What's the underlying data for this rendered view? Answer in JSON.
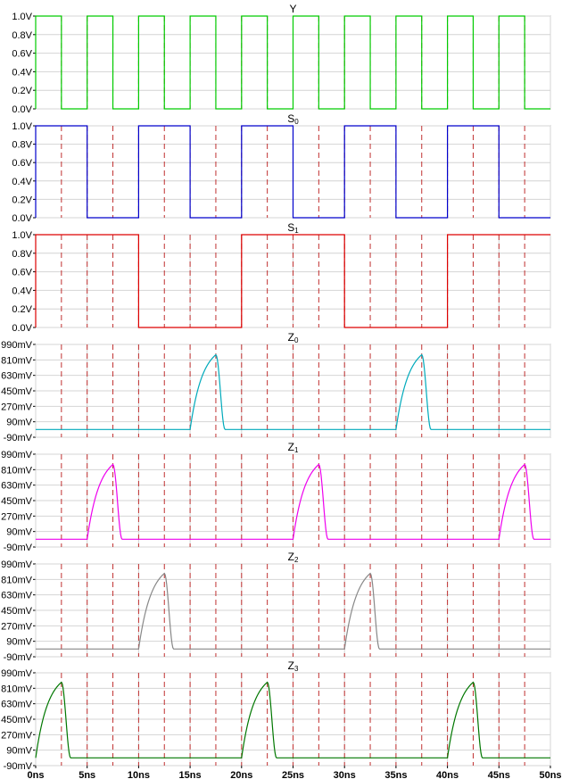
{
  "chart_data": {
    "type": "line",
    "x_unit": "ns",
    "xlim": [
      0,
      50
    ],
    "xticks": [
      "0ns",
      "5ns",
      "10ns",
      "15ns",
      "20ns",
      "25ns",
      "30ns",
      "35ns",
      "40ns",
      "45ns",
      "50ns"
    ],
    "marker_times": [
      2.5,
      5,
      7.5,
      10,
      12.5,
      15,
      17.5,
      20,
      22.5,
      25,
      27.5,
      30,
      32.5,
      35,
      37.5,
      40,
      42.5,
      45,
      47.5
    ],
    "grid": true,
    "panels": [
      {
        "title_main": "Y",
        "title_sub": "",
        "color": "#00cc00",
        "ylim": [
          0,
          1.0
        ],
        "yticks": [
          {
            "v": 1.0,
            "label": "1.0V"
          },
          {
            "v": 0.8,
            "label": "0.8V"
          },
          {
            "v": 0.6,
            "label": "0.6V"
          },
          {
            "v": 0.4,
            "label": "0.4V"
          },
          {
            "v": 0.2,
            "label": "0.2V"
          },
          {
            "v": 0.0,
            "label": "0.0V"
          }
        ],
        "kind": "digital",
        "points": [
          [
            0,
            0
          ],
          [
            0,
            1
          ],
          [
            2.5,
            1
          ],
          [
            2.5,
            0
          ],
          [
            5,
            0
          ],
          [
            5,
            1
          ],
          [
            7.5,
            1
          ],
          [
            7.5,
            0
          ],
          [
            10,
            0
          ],
          [
            10,
            1
          ],
          [
            12.5,
            1
          ],
          [
            12.5,
            0
          ],
          [
            15,
            0
          ],
          [
            15,
            1
          ],
          [
            17.5,
            1
          ],
          [
            17.5,
            0
          ],
          [
            20,
            0
          ],
          [
            20,
            1
          ],
          [
            22.5,
            1
          ],
          [
            22.5,
            0
          ],
          [
            25,
            0
          ],
          [
            25,
            1
          ],
          [
            27.5,
            1
          ],
          [
            27.5,
            0
          ],
          [
            30,
            0
          ],
          [
            30,
            1
          ],
          [
            32.5,
            1
          ],
          [
            32.5,
            0
          ],
          [
            35,
            0
          ],
          [
            35,
            1
          ],
          [
            37.5,
            1
          ],
          [
            37.5,
            0
          ],
          [
            40,
            0
          ],
          [
            40,
            1
          ],
          [
            42.5,
            1
          ],
          [
            42.5,
            0
          ],
          [
            45,
            0
          ],
          [
            45,
            1
          ],
          [
            47.5,
            1
          ],
          [
            47.5,
            0
          ],
          [
            50,
            0
          ]
        ]
      },
      {
        "title_main": "S",
        "title_sub": "0",
        "color": "#0000cc",
        "ylim": [
          0,
          1.0
        ],
        "yticks": [
          {
            "v": 1.0,
            "label": "1.0V"
          },
          {
            "v": 0.8,
            "label": "0.8V"
          },
          {
            "v": 0.6,
            "label": "0.6V"
          },
          {
            "v": 0.4,
            "label": "0.4V"
          },
          {
            "v": 0.2,
            "label": "0.2V"
          },
          {
            "v": 0.0,
            "label": "0.0V"
          }
        ],
        "kind": "digital",
        "points": [
          [
            0,
            0
          ],
          [
            0,
            1
          ],
          [
            5,
            1
          ],
          [
            5,
            0
          ],
          [
            10,
            0
          ],
          [
            10,
            1
          ],
          [
            15,
            1
          ],
          [
            15,
            0
          ],
          [
            20,
            0
          ],
          [
            20,
            1
          ],
          [
            25,
            1
          ],
          [
            25,
            0
          ],
          [
            30,
            0
          ],
          [
            30,
            1
          ],
          [
            35,
            1
          ],
          [
            35,
            0
          ],
          [
            40,
            0
          ],
          [
            40,
            1
          ],
          [
            45,
            1
          ],
          [
            45,
            0
          ],
          [
            50,
            0
          ]
        ]
      },
      {
        "title_main": "S",
        "title_sub": "1",
        "color": "#dd0000",
        "ylim": [
          0,
          1.0
        ],
        "yticks": [
          {
            "v": 1.0,
            "label": "1.0V"
          },
          {
            "v": 0.8,
            "label": "0.8V"
          },
          {
            "v": 0.6,
            "label": "0.6V"
          },
          {
            "v": 0.4,
            "label": "0.4V"
          },
          {
            "v": 0.2,
            "label": "0.2V"
          },
          {
            "v": 0.0,
            "label": "0.0V"
          }
        ],
        "kind": "digital",
        "points": [
          [
            0,
            0
          ],
          [
            0,
            1
          ],
          [
            10,
            1
          ],
          [
            10,
            0
          ],
          [
            20,
            0
          ],
          [
            20,
            1
          ],
          [
            30,
            1
          ],
          [
            30,
            0
          ],
          [
            40,
            0
          ],
          [
            40,
            1
          ],
          [
            50,
            1
          ]
        ]
      },
      {
        "title_main": "Z",
        "title_sub": "0",
        "color": "#00aabb",
        "ylim": [
          -90,
          990
        ],
        "yticks": [
          {
            "v": 990,
            "label": "990mV"
          },
          {
            "v": 810,
            "label": "810mV"
          },
          {
            "v": 630,
            "label": "630mV"
          },
          {
            "v": 450,
            "label": "450mV"
          },
          {
            "v": 270,
            "label": "270mV"
          },
          {
            "v": 90,
            "label": "90mV"
          },
          {
            "v": -90,
            "label": "-90mV"
          }
        ],
        "kind": "pulse",
        "baseline": 0,
        "peak": 870,
        "pulses": [
          [
            15,
            17.5
          ],
          [
            35,
            37.5
          ]
        ]
      },
      {
        "title_main": "Z",
        "title_sub": "1",
        "color": "#ee00ee",
        "ylim": [
          -90,
          990
        ],
        "yticks": [
          {
            "v": 990,
            "label": "990mV"
          },
          {
            "v": 810,
            "label": "810mV"
          },
          {
            "v": 630,
            "label": "630mV"
          },
          {
            "v": 450,
            "label": "450mV"
          },
          {
            "v": 270,
            "label": "270mV"
          },
          {
            "v": 90,
            "label": "90mV"
          },
          {
            "v": -90,
            "label": "-90mV"
          }
        ],
        "kind": "pulse",
        "baseline": 0,
        "peak": 870,
        "pulses": [
          [
            5,
            7.5
          ],
          [
            25,
            27.5
          ],
          [
            45,
            47.5
          ]
        ]
      },
      {
        "title_main": "Z",
        "title_sub": "2",
        "color": "#888888",
        "ylim": [
          -90,
          990
        ],
        "yticks": [
          {
            "v": 990,
            "label": "990mV"
          },
          {
            "v": 810,
            "label": "810mV"
          },
          {
            "v": 630,
            "label": "630mV"
          },
          {
            "v": 450,
            "label": "450mV"
          },
          {
            "v": 270,
            "label": "270mV"
          },
          {
            "v": 90,
            "label": "90mV"
          },
          {
            "v": -90,
            "label": "-90mV"
          }
        ],
        "kind": "pulse",
        "baseline": 0,
        "peak": 880,
        "pulses": [
          [
            10,
            12.5
          ],
          [
            30,
            32.5
          ]
        ]
      },
      {
        "title_main": "Z",
        "title_sub": "3",
        "color": "#007700",
        "ylim": [
          -90,
          990
        ],
        "yticks": [
          {
            "v": 990,
            "label": "990mV"
          },
          {
            "v": 810,
            "label": "810mV"
          },
          {
            "v": 630,
            "label": "630mV"
          },
          {
            "v": 450,
            "label": "450mV"
          },
          {
            "v": 270,
            "label": "270mV"
          },
          {
            "v": 90,
            "label": "90mV"
          },
          {
            "v": -90,
            "label": "-90mV"
          }
        ],
        "kind": "pulse",
        "baseline": 0,
        "peak": 880,
        "pulses": [
          [
            0,
            2.5
          ],
          [
            20,
            22.5
          ],
          [
            40,
            42.5
          ]
        ]
      }
    ]
  }
}
